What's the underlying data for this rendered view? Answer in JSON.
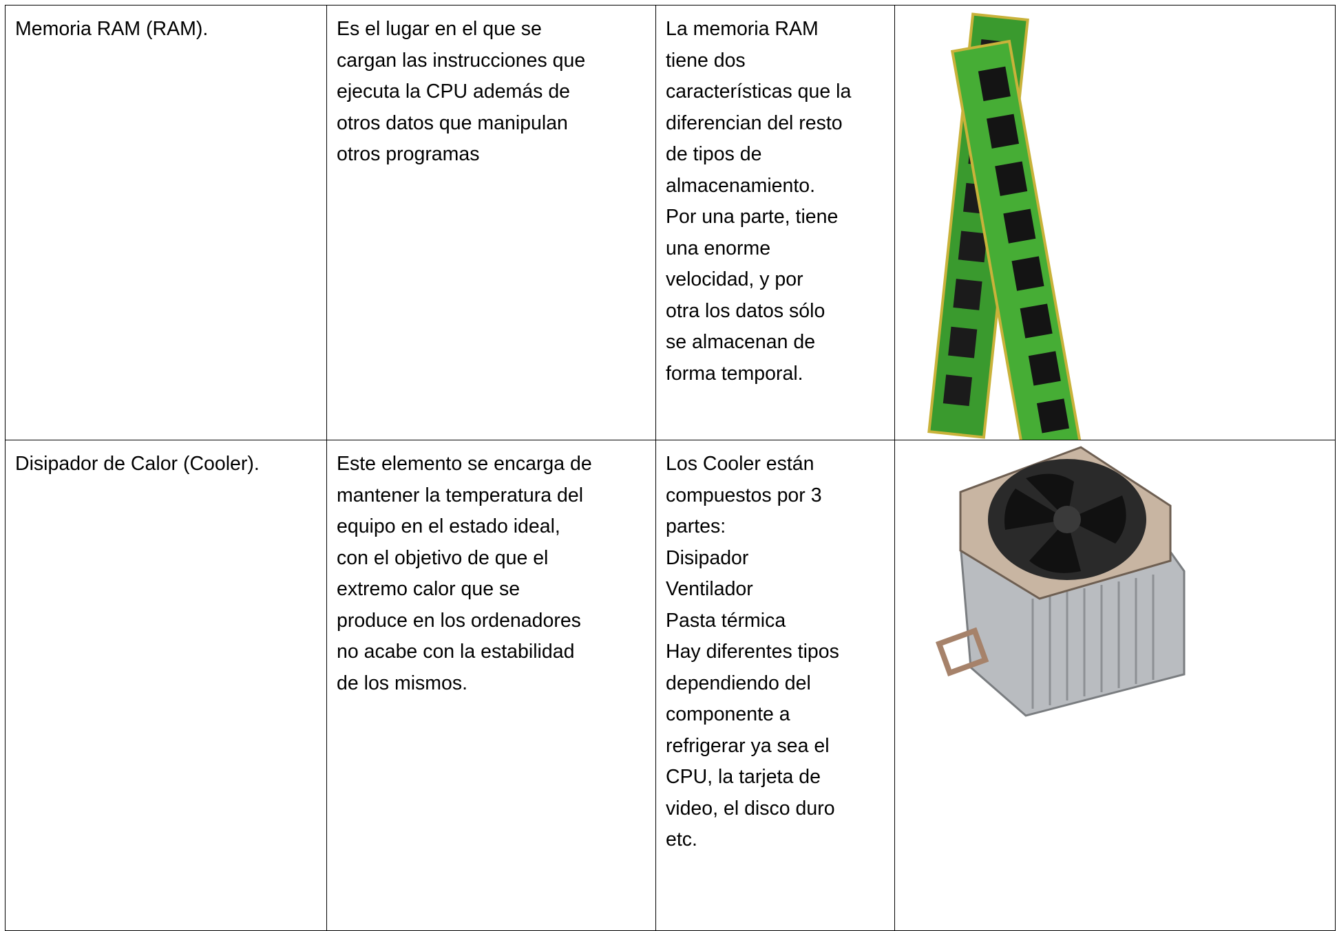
{
  "table": {
    "rows": [
      [
        [
          "Memoria RAM (RAM)."
        ],
        [
          "Es el lugar en el que se",
          "cargan las instrucciones que",
          "ejecuta la CPU además de",
          "otros datos que manipulan",
          "otros programas"
        ],
        [
          "La memoria RAM",
          "tiene dos",
          "características que la",
          "diferencian del resto",
          "de tipos de",
          "almacenamiento.",
          "Por una parte, tiene",
          "una enorme",
          "velocidad, y por",
          "otra los datos sólo",
          "se almacenan de",
          "forma temporal."
        ]
      ],
      [
        [
          "Disipador de Calor (Cooler)."
        ],
        [
          "Este elemento se encarga de",
          "mantener la temperatura del",
          "equipo en el estado ideal,",
          "con el objetivo de que el",
          "extremo calor que se",
          "produce en los ordenadores",
          "no acabe con la estabilidad",
          "de los mismos."
        ],
        [
          "Los Cooler están",
          "compuestos por 3",
          "partes:",
          "Disipador",
          "Ventilador",
          "Pasta térmica",
          "Hay diferentes tipos",
          "dependiendo del",
          "componente a",
          "refrigerar ya sea el",
          "CPU, la tarjeta de",
          "video, el disco duro",
          "etc."
        ]
      ]
    ]
  }
}
